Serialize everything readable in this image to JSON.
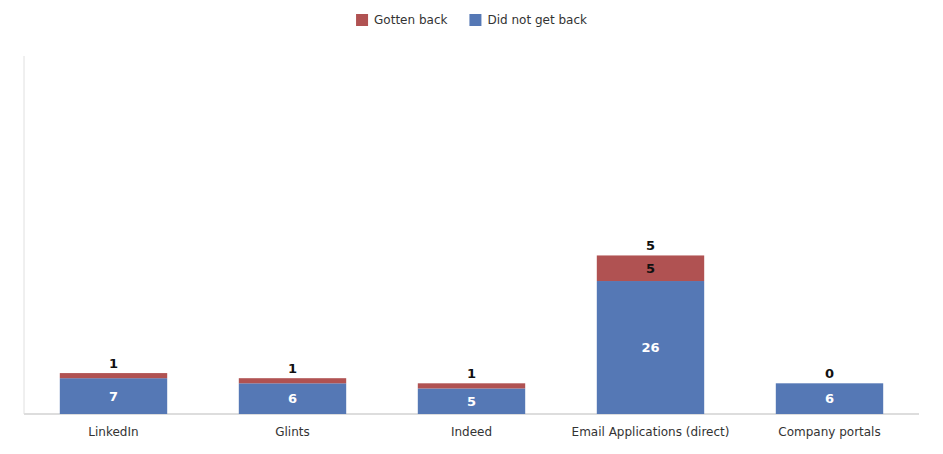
{
  "chart_data": {
    "type": "bar",
    "stacked": true,
    "categories": [
      "LinkedIn",
      "Glints",
      "Indeed",
      "Email Applications (direct)",
      "Company portals"
    ],
    "series": [
      {
        "name": "Did not get back",
        "color": "#5578b5",
        "values": [
          7,
          6,
          5,
          26,
          6
        ]
      },
      {
        "name": "Gotten back",
        "color": "#b05252",
        "values": [
          1,
          1,
          1,
          5,
          0
        ]
      }
    ],
    "ylim": [
      0,
      70
    ],
    "grid": false,
    "legend": "top",
    "data_labels": true,
    "tick_labels": "x"
  }
}
